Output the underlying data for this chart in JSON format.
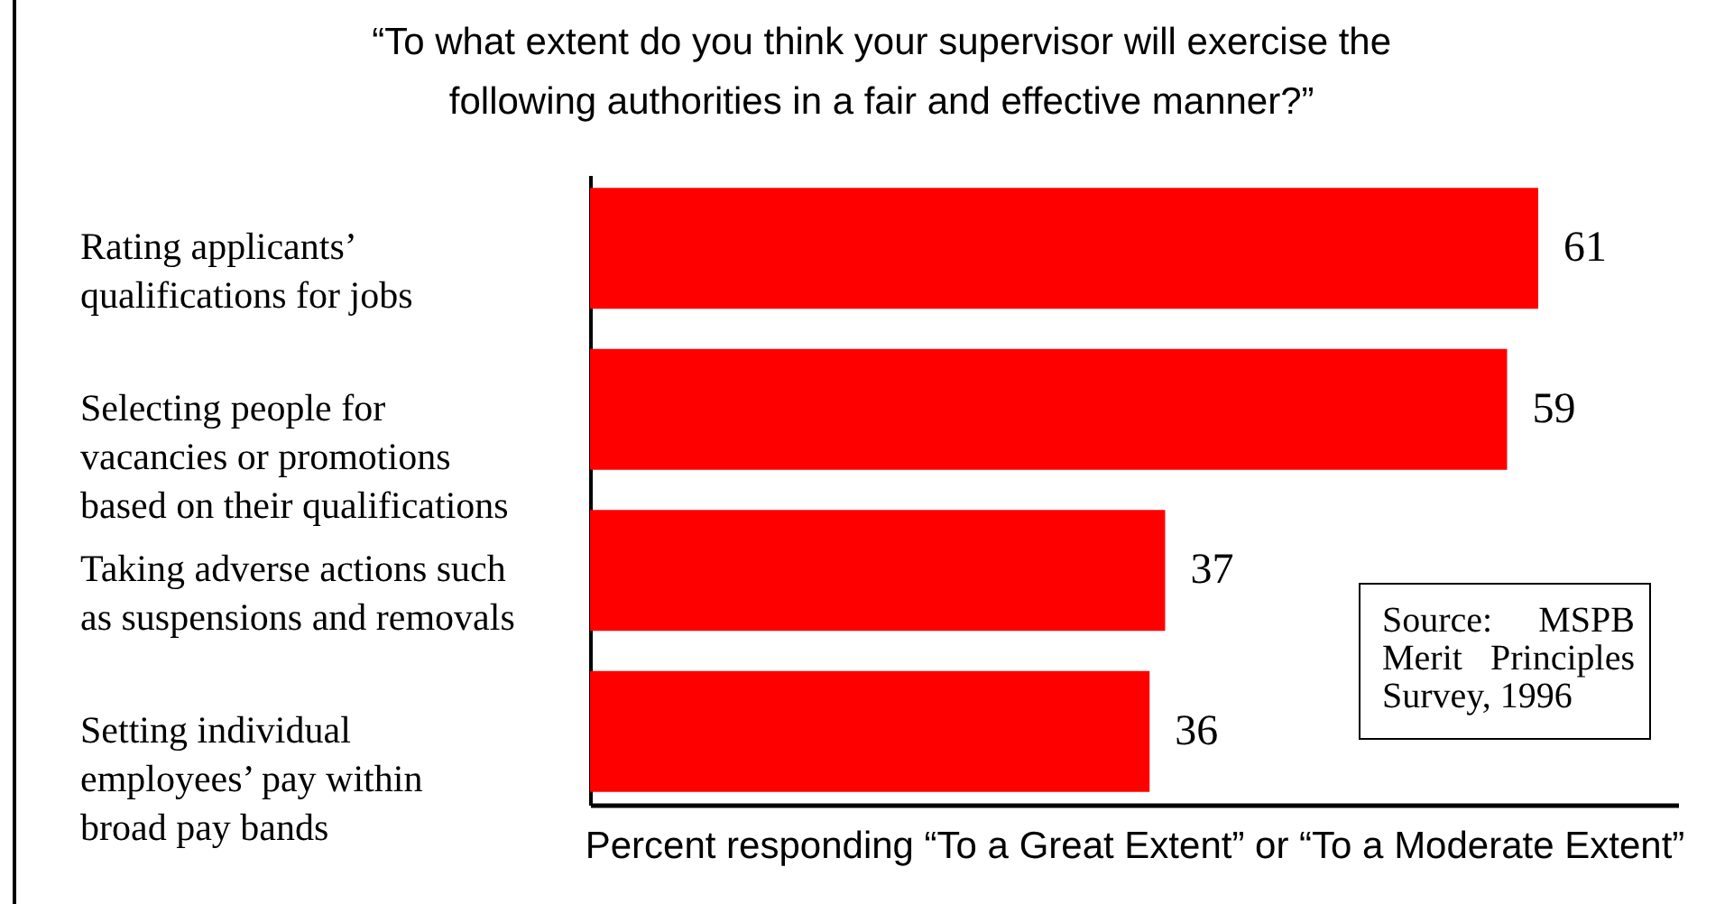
{
  "chart_data": {
    "type": "bar",
    "orientation": "horizontal",
    "title": "“To what extent do you think your supervisor will exercise the following authorities in a fair and effective manner?”",
    "xlabel": "Percent responding “To a Great Extent” or “To a Moderate Extent”",
    "categories": [
      "Rating applicants’ qualifications for jobs",
      "Selecting people for vacancies or promotions based on their qualifications",
      "Taking adverse actions such as suspensions and removals",
      "Setting individual employees’ pay within broad pay bands"
    ],
    "values": [
      61,
      59,
      37,
      36
    ],
    "color": "#ff0000",
    "data_labels": true,
    "annotations": [
      "Source: MSPB Merit Principles Survey, 1996"
    ]
  }
}
